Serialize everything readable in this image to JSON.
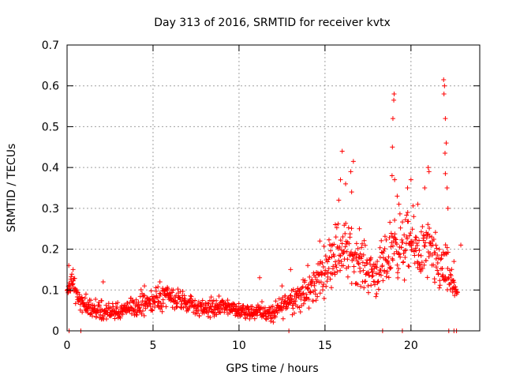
{
  "chart_data": {
    "type": "scatter",
    "title": "Day 313 of 2016, SRMTID for receiver kvtx",
    "xlabel": "GPS time / hours",
    "ylabel": "SRMTID / TECUs",
    "xlim": [
      0,
      24
    ],
    "ylim": [
      0,
      0.7
    ],
    "xticks": [
      "0",
      "5",
      "10",
      "15",
      "20"
    ],
    "yticks": [
      "0",
      "0.1",
      "0.2",
      "0.3",
      "0.4",
      "0.5",
      "0.6",
      "0.7"
    ],
    "grid": true,
    "marker": "plus",
    "color": "#ff0000",
    "envelope": {
      "description": "approximate per-hour median and spread of the dense plus-marker cloud",
      "hours": [
        0.0,
        0.3,
        0.6,
        1.0,
        2.0,
        3.0,
        4.0,
        5.0,
        6.0,
        7.0,
        8.0,
        9.0,
        10.0,
        11.0,
        12.0,
        12.5,
        13.0,
        14.0,
        15.0,
        15.5,
        16.0,
        16.5,
        17.0,
        17.5,
        18.0,
        18.5,
        19.0,
        19.5,
        20.0,
        20.5,
        21.0,
        21.5,
        22.0,
        22.3,
        22.7
      ],
      "median": [
        0.09,
        0.13,
        0.08,
        0.06,
        0.05,
        0.045,
        0.06,
        0.075,
        0.08,
        0.065,
        0.055,
        0.06,
        0.05,
        0.05,
        0.04,
        0.06,
        0.08,
        0.09,
        0.15,
        0.19,
        0.2,
        0.19,
        0.17,
        0.15,
        0.14,
        0.16,
        0.22,
        0.2,
        0.22,
        0.19,
        0.2,
        0.16,
        0.15,
        0.12,
        0.1
      ],
      "spread": [
        0.02,
        0.025,
        0.025,
        0.02,
        0.02,
        0.02,
        0.025,
        0.025,
        0.025,
        0.02,
        0.02,
        0.02,
        0.02,
        0.02,
        0.02,
        0.025,
        0.03,
        0.04,
        0.05,
        0.06,
        0.07,
        0.06,
        0.05,
        0.05,
        0.05,
        0.06,
        0.07,
        0.07,
        0.07,
        0.06,
        0.07,
        0.06,
        0.06,
        0.04,
        0.03
      ]
    },
    "outliers": [
      {
        "x": 0.1,
        "y": 0.16
      },
      {
        "x": 0.35,
        "y": 0.15
      },
      {
        "x": 1.1,
        "y": 0.09
      },
      {
        "x": 2.1,
        "y": 0.12
      },
      {
        "x": 4.5,
        "y": 0.11
      },
      {
        "x": 5.4,
        "y": 0.12
      },
      {
        "x": 11.2,
        "y": 0.13
      },
      {
        "x": 12.5,
        "y": 0.11
      },
      {
        "x": 13.0,
        "y": 0.15
      },
      {
        "x": 14.0,
        "y": 0.16
      },
      {
        "x": 14.7,
        "y": 0.22
      },
      {
        "x": 15.6,
        "y": 0.26
      },
      {
        "x": 15.8,
        "y": 0.32
      },
      {
        "x": 15.9,
        "y": 0.37
      },
      {
        "x": 16.0,
        "y": 0.44
      },
      {
        "x": 16.2,
        "y": 0.36
      },
      {
        "x": 16.5,
        "y": 0.39
      },
      {
        "x": 16.65,
        "y": 0.415
      },
      {
        "x": 16.55,
        "y": 0.34
      },
      {
        "x": 17.0,
        "y": 0.25
      },
      {
        "x": 18.9,
        "y": 0.38
      },
      {
        "x": 18.92,
        "y": 0.45
      },
      {
        "x": 18.95,
        "y": 0.52
      },
      {
        "x": 19.0,
        "y": 0.565
      },
      {
        "x": 19.02,
        "y": 0.58
      },
      {
        "x": 19.05,
        "y": 0.37
      },
      {
        "x": 19.2,
        "y": 0.33
      },
      {
        "x": 19.3,
        "y": 0.31
      },
      {
        "x": 19.8,
        "y": 0.35
      },
      {
        "x": 20.0,
        "y": 0.37
      },
      {
        "x": 20.4,
        "y": 0.31
      },
      {
        "x": 20.8,
        "y": 0.35
      },
      {
        "x": 21.0,
        "y": 0.4
      },
      {
        "x": 21.05,
        "y": 0.39
      },
      {
        "x": 21.9,
        "y": 0.615
      },
      {
        "x": 21.95,
        "y": 0.6
      },
      {
        "x": 21.92,
        "y": 0.58
      },
      {
        "x": 22.0,
        "y": 0.52
      },
      {
        "x": 22.05,
        "y": 0.46
      },
      {
        "x": 21.98,
        "y": 0.435
      },
      {
        "x": 22.0,
        "y": 0.385
      },
      {
        "x": 22.1,
        "y": 0.35
      },
      {
        "x": 22.15,
        "y": 0.3
      },
      {
        "x": 22.5,
        "y": 0.17
      },
      {
        "x": 22.9,
        "y": 0.21
      }
    ],
    "baseline_markers": [
      {
        "x": 0.12,
        "y": 0.0
      },
      {
        "x": 0.8,
        "y": 0.0
      },
      {
        "x": 12.9,
        "y": 0.0
      },
      {
        "x": 18.35,
        "y": 0.0
      },
      {
        "x": 19.5,
        "y": 0.0
      },
      {
        "x": 22.2,
        "y": 0.0
      },
      {
        "x": 22.5,
        "y": 0.0
      },
      {
        "x": 22.65,
        "y": 0.0
      }
    ]
  }
}
